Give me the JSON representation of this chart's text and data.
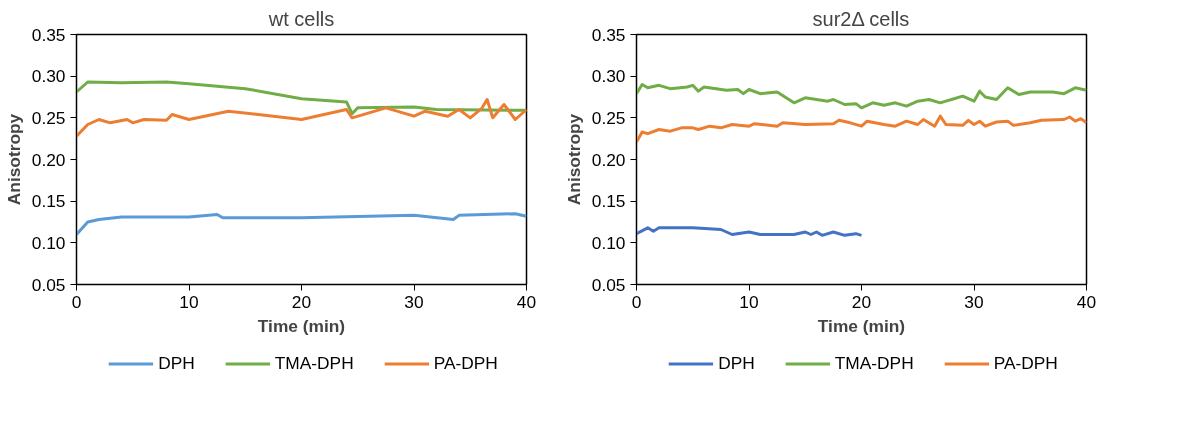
{
  "chart_data": [
    {
      "type": "line",
      "title": "wt cells",
      "xlabel": "Time (min)",
      "ylabel": "Anisotropy",
      "xlim": [
        0,
        40
      ],
      "xticks": [
        0,
        10,
        20,
        30,
        40
      ],
      "ylim": [
        0.05,
        0.35
      ],
      "yticks": [
        {
          "value": 0.05,
          "label": "0.05"
        },
        {
          "value": 0.1,
          "label": "0.10"
        },
        {
          "value": 0.15,
          "label": "0.15"
        },
        {
          "value": 0.2,
          "label": "0.20"
        },
        {
          "value": 0.25,
          "label": "0.25"
        },
        {
          "value": 0.3,
          "label": "0.30"
        },
        {
          "value": 0.35,
          "label": "0.35"
        }
      ],
      "grid": false,
      "legend": "bottom",
      "marker": "none",
      "line_style": "solid",
      "series": [
        {
          "name": "DPH",
          "color": "#5b9bd5",
          "x": [
            0,
            1,
            2,
            4,
            10,
            12.5,
            13,
            20,
            30,
            33.5,
            34,
            39,
            40
          ],
          "values": [
            0.11,
            0.125,
            0.128,
            0.131,
            0.131,
            0.134,
            0.13,
            0.13,
            0.133,
            0.128,
            0.133,
            0.135,
            0.132
          ]
        },
        {
          "name": "TMA-DPH",
          "color": "#70ad47",
          "x": [
            0,
            1,
            4,
            8,
            10,
            15,
            20,
            24,
            24.5,
            25,
            30,
            32,
            40
          ],
          "values": [
            0.281,
            0.293,
            0.292,
            0.293,
            0.291,
            0.285,
            0.273,
            0.269,
            0.255,
            0.262,
            0.263,
            0.26,
            0.259
          ]
        },
        {
          "name": "PA-DPH",
          "color": "#ed7d31",
          "x": [
            0,
            1,
            2,
            3,
            4.5,
            5,
            6,
            8,
            8.5,
            10,
            13.5,
            20,
            24,
            24.5,
            27.5,
            30,
            31,
            33,
            34,
            35,
            36,
            36.5,
            37,
            38,
            39,
            40
          ],
          "values": [
            0.228,
            0.242,
            0.248,
            0.244,
            0.248,
            0.244,
            0.248,
            0.247,
            0.254,
            0.248,
            0.258,
            0.248,
            0.26,
            0.25,
            0.262,
            0.252,
            0.258,
            0.252,
            0.26,
            0.25,
            0.261,
            0.272,
            0.25,
            0.266,
            0.248,
            0.26
          ]
        }
      ]
    },
    {
      "type": "line",
      "title": "sur2Δ cells",
      "xlabel": "Time (min)",
      "ylabel": "Anisotropy",
      "xlim": [
        0,
        40
      ],
      "xticks": [
        0,
        10,
        20,
        30,
        40
      ],
      "ylim": [
        0.05,
        0.35
      ],
      "yticks": [
        {
          "value": 0.05,
          "label": "0.05"
        },
        {
          "value": 0.1,
          "label": "0.10"
        },
        {
          "value": 0.15,
          "label": "0.15"
        },
        {
          "value": 0.2,
          "label": "0.20"
        },
        {
          "value": 0.25,
          "label": "0.25"
        },
        {
          "value": 0.3,
          "label": "0.30"
        },
        {
          "value": 0.35,
          "label": "0.35"
        }
      ],
      "grid": false,
      "legend": "bottom",
      "marker": "none",
      "line_style": "solid",
      "series": [
        {
          "name": "DPH",
          "color": "#4472c4",
          "x": [
            0,
            1,
            1.5,
            2,
            5,
            7.5,
            8.5,
            10,
            11,
            12.5,
            14,
            15,
            15.5,
            16,
            16.5,
            17.5,
            18.5,
            19.5,
            20
          ],
          "values": [
            0.111,
            0.118,
            0.114,
            0.118,
            0.118,
            0.116,
            0.11,
            0.113,
            0.11,
            0.11,
            0.11,
            0.113,
            0.11,
            0.113,
            0.109,
            0.113,
            0.109,
            0.111,
            0.109
          ]
        },
        {
          "name": "TMA-DPH",
          "color": "#70ad47",
          "x": [
            0,
            0.5,
            1,
            2,
            3,
            4.5,
            5,
            5.5,
            6,
            8,
            9,
            9.5,
            10,
            11,
            12.5,
            14,
            15,
            16,
            17,
            17.5,
            18.5,
            19.5,
            20,
            21,
            22,
            23,
            24,
            25,
            26,
            27,
            27.5,
            28,
            29,
            30,
            30.5,
            31,
            32,
            33,
            34,
            35,
            36,
            37,
            38,
            39,
            40
          ],
          "values": [
            0.279,
            0.29,
            0.286,
            0.289,
            0.285,
            0.287,
            0.289,
            0.282,
            0.287,
            0.283,
            0.284,
            0.279,
            0.284,
            0.279,
            0.281,
            0.268,
            0.274,
            0.272,
            0.27,
            0.272,
            0.266,
            0.267,
            0.262,
            0.268,
            0.265,
            0.268,
            0.264,
            0.27,
            0.272,
            0.268,
            0.27,
            0.272,
            0.276,
            0.27,
            0.282,
            0.275,
            0.272,
            0.286,
            0.278,
            0.281,
            0.281,
            0.281,
            0.279,
            0.286,
            0.283
          ]
        },
        {
          "name": "PA-DPH",
          "color": "#ed7d31",
          "x": [
            0,
            0.5,
            1,
            2,
            3,
            4,
            5,
            5.5,
            6.5,
            7.5,
            8.5,
            10,
            10.5,
            12.5,
            13,
            15,
            17.5,
            18,
            19,
            20,
            20.5,
            22,
            23,
            24,
            25,
            25.5,
            26.5,
            27,
            27.5,
            29,
            29.5,
            30,
            30.5,
            31,
            32,
            33,
            33.5,
            35,
            36,
            38,
            38.5,
            39,
            39.5,
            40
          ],
          "values": [
            0.221,
            0.233,
            0.231,
            0.236,
            0.234,
            0.238,
            0.238,
            0.236,
            0.24,
            0.238,
            0.242,
            0.24,
            0.243,
            0.24,
            0.244,
            0.242,
            0.243,
            0.247,
            0.244,
            0.24,
            0.246,
            0.242,
            0.24,
            0.246,
            0.242,
            0.248,
            0.24,
            0.252,
            0.242,
            0.241,
            0.247,
            0.242,
            0.246,
            0.24,
            0.245,
            0.246,
            0.241,
            0.244,
            0.247,
            0.248,
            0.251,
            0.246,
            0.249,
            0.244
          ]
        }
      ]
    }
  ]
}
